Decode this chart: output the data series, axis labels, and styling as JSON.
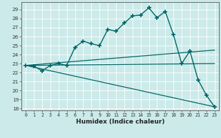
{
  "xlabel": "Humidex (Indice chaleur)",
  "bg_color": "#cceaea",
  "grid_color": "#b0d8d8",
  "line_color": "#006666",
  "xlim": [
    -0.5,
    23.5
  ],
  "ylim": [
    17.8,
    29.8
  ],
  "yticks": [
    18,
    19,
    20,
    21,
    22,
    23,
    24,
    25,
    26,
    27,
    28,
    29
  ],
  "xticks": [
    0,
    1,
    2,
    3,
    4,
    5,
    6,
    7,
    8,
    9,
    10,
    11,
    12,
    13,
    14,
    15,
    16,
    17,
    18,
    19,
    20,
    21,
    22,
    23
  ],
  "series": [
    {
      "x": [
        0,
        1,
        2,
        3,
        4,
        5,
        6,
        7,
        8,
        9,
        10,
        11,
        12,
        13,
        14,
        15,
        16,
        17,
        18,
        19,
        20,
        21,
        22,
        23
      ],
      "y": [
        22.8,
        22.7,
        22.2,
        22.8,
        23.0,
        22.8,
        24.8,
        25.5,
        25.2,
        25.0,
        26.8,
        26.6,
        27.5,
        28.3,
        28.4,
        29.2,
        28.1,
        28.8,
        26.2,
        23.0,
        24.4,
        21.2,
        19.5,
        18.2
      ],
      "marker": "+",
      "markersize": 4,
      "markeredgewidth": 1.2,
      "linewidth": 1.0
    },
    {
      "x": [
        0,
        23
      ],
      "y": [
        22.8,
        24.5
      ],
      "linewidth": 0.9
    },
    {
      "x": [
        0,
        23
      ],
      "y": [
        22.8,
        23.0
      ],
      "linewidth": 0.9
    },
    {
      "x": [
        0,
        23
      ],
      "y": [
        22.8,
        18.2
      ],
      "linewidth": 0.9
    }
  ]
}
